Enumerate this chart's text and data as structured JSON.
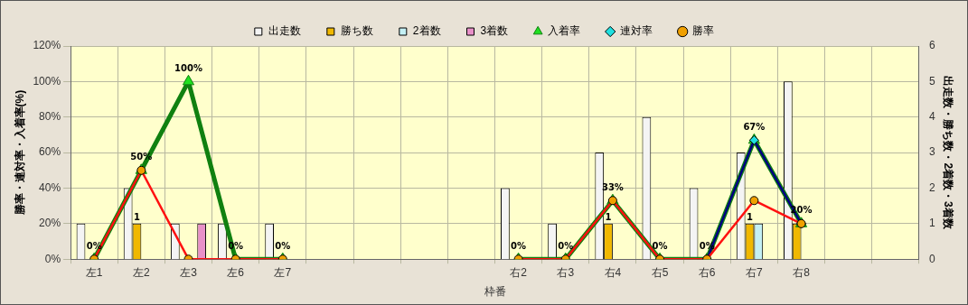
{
  "chart_data": {
    "type": "bar",
    "xlabel": "枠番",
    "ylabel": "勝率・連対率・入着率(%)",
    "y2label": "出走数・勝ち数・2着数・3着数",
    "categories": [
      "左1",
      "左2",
      "左3",
      "左6",
      "左7",
      null,
      null,
      null,
      null,
      "右2",
      "右3",
      "右4",
      "右5",
      "右6",
      "右7",
      "右8",
      null,
      null
    ],
    "series": [
      {
        "name": "出走数",
        "axis": "y2",
        "color": "#f4f4f4",
        "values": [
          1,
          2,
          1,
          1,
          1,
          null,
          null,
          null,
          null,
          2,
          1,
          3,
          4,
          2,
          3,
          5,
          null,
          null
        ]
      },
      {
        "name": "勝ち数",
        "axis": "y2",
        "color": "#f0b800",
        "values": [
          0,
          1,
          0,
          0,
          0,
          null,
          null,
          null,
          null,
          0,
          0,
          1,
          0,
          0,
          1,
          1,
          null,
          null
        ],
        "value_labels": [
          null,
          "1",
          null,
          null,
          null,
          null,
          null,
          null,
          null,
          null,
          null,
          "1",
          null,
          null,
          "1",
          null,
          null,
          null
        ]
      },
      {
        "name": "2着数",
        "axis": "y2",
        "color": "#c4f0f4",
        "values": [
          0,
          0,
          0,
          0,
          0,
          null,
          null,
          null,
          null,
          0,
          0,
          0,
          0,
          0,
          1,
          0,
          null,
          null
        ]
      },
      {
        "name": "3着数",
        "axis": "y2",
        "color": "#e890c8",
        "values": [
          0,
          0,
          1,
          0,
          0,
          null,
          null,
          null,
          null,
          0,
          0,
          0,
          0,
          0,
          0,
          0,
          null,
          null
        ]
      },
      {
        "name": "入着率",
        "type": "line",
        "axis": "y",
        "color": "#108010",
        "marker": "triangle",
        "values": [
          0,
          50,
          100,
          0,
          0,
          null,
          null,
          null,
          null,
          0,
          0,
          33,
          0,
          0,
          67,
          20,
          null,
          null
        ],
        "value_labels": [
          "0%",
          "50%",
          "100%",
          "0%",
          "0%",
          null,
          null,
          null,
          null,
          "0%",
          "0%",
          "33%",
          "0%",
          "0%",
          "67%",
          "20%",
          null,
          null
        ]
      },
      {
        "name": "連対率",
        "type": "line",
        "axis": "y",
        "color": "#000080",
        "marker": "diamond",
        "values": [
          null,
          null,
          null,
          null,
          null,
          null,
          null,
          null,
          null,
          null,
          null,
          null,
          null,
          0,
          67,
          20,
          null,
          null
        ]
      },
      {
        "name": "勝率",
        "type": "line",
        "axis": "y",
        "color": "#ff1010",
        "marker": "circle",
        "values": [
          0,
          50,
          0,
          0,
          0,
          null,
          null,
          null,
          null,
          0,
          0,
          33,
          0,
          0,
          33,
          20,
          null,
          null
        ]
      }
    ],
    "ylim": [
      0,
      120
    ],
    "yticks": [
      {
        "value": 0,
        "label": "0%"
      },
      {
        "value": 20,
        "label": "20%"
      },
      {
        "value": 40,
        "label": "40%"
      },
      {
        "value": 60,
        "label": "60%"
      },
      {
        "value": 80,
        "label": "80%"
      },
      {
        "value": 100,
        "label": "100%"
      },
      {
        "value": 120,
        "label": "120%"
      }
    ],
    "y2lim": [
      0,
      6
    ],
    "y2ticks": [
      0,
      1,
      2,
      3,
      4,
      5,
      6
    ],
    "grid": true,
    "legend": "top"
  }
}
